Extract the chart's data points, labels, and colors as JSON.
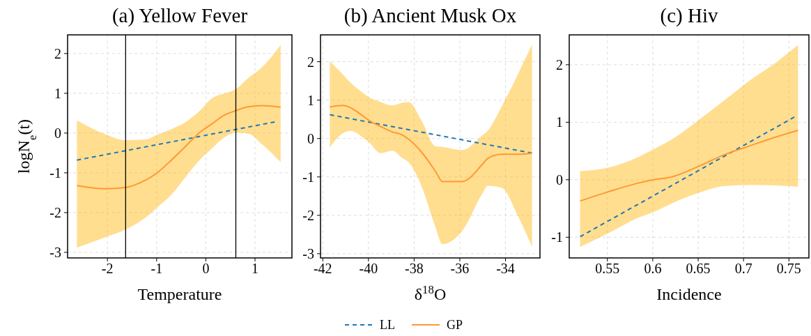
{
  "chart_data": [
    {
      "type": "line",
      "title": "(a) Yellow Fever",
      "xlabel": "Temperature",
      "ylabel": "logN$_{e}$(t)",
      "xlim": [
        -2.81,
        1.75
      ],
      "xticks": [
        -2,
        -1,
        0,
        1
      ],
      "ylim": [
        -3.14,
        2.47
      ],
      "yticks": [
        -3,
        -2,
        -1,
        0,
        1,
        2
      ],
      "grid": true,
      "legend": "bottom",
      "ref_lines": [
        {
          "axis": "x",
          "value": -1.63,
          "color": "#000000"
        },
        {
          "axis": "x",
          "value": 0.61,
          "color": "#000000"
        }
      ],
      "series": [
        {
          "name": "LL",
          "color": "#1f77b4",
          "line_style": "dashed",
          "x": [
            -2.62,
            1.4
          ],
          "values": [
            -0.68,
            0.28
          ]
        },
        {
          "name": "GP",
          "color": "#ff9933",
          "line_style": "solid",
          "x": [
            -2.62,
            -2.02,
            -1.64,
            -1.22,
            -1.0,
            -0.7,
            -0.41,
            -0.09,
            0.11,
            0.39,
            0.6,
            0.86,
            1.14,
            1.52
          ],
          "values": [
            -1.32,
            -1.4,
            -1.37,
            -1.18,
            -1.01,
            -0.68,
            -0.33,
            0.05,
            0.22,
            0.46,
            0.56,
            0.66,
            0.69,
            0.65
          ],
          "upper": [
            0.32,
            -0.04,
            -0.18,
            -0.16,
            -0.05,
            0.1,
            0.28,
            0.6,
            0.86,
            1.0,
            1.1,
            1.38,
            1.65,
            2.21
          ],
          "lower": [
            -2.88,
            -2.61,
            -2.43,
            -2.12,
            -1.88,
            -1.55,
            -1.1,
            -0.63,
            -0.4,
            -0.1,
            0.01,
            -0.01,
            -0.28,
            -0.73
          ]
        }
      ]
    },
    {
      "type": "line",
      "title": "(b) Ancient Musk Ox",
      "xlabel": "δ$^{18}$O",
      "xlim": [
        -42.1,
        -32.49
      ],
      "xticks": [
        -42,
        -40,
        -38,
        -36,
        -34
      ],
      "ylim": [
        -3.11,
        2.7
      ],
      "yticks": [
        -3,
        -2,
        -1,
        0,
        1,
        2
      ],
      "grid": true,
      "series": [
        {
          "color": "#1f77b4",
          "line_style": "dashed",
          "x": [
            -41.69,
            -32.84
          ],
          "values": [
            0.62,
            -0.38
          ]
        },
        {
          "color": "#ff9933",
          "line_style": "solid",
          "x": [
            -41.69,
            -41.14,
            -40.78,
            -40.27,
            -39.97,
            -39.46,
            -38.95,
            -38.54,
            -38.24,
            -37.68,
            -37.07,
            -36.76,
            -35.9,
            -34.98,
            -34.78,
            -34.17,
            -33.45,
            -32.84
          ],
          "values": [
            0.82,
            0.86,
            0.8,
            0.6,
            0.47,
            0.31,
            0.17,
            0.1,
            -0.02,
            -0.35,
            -0.85,
            -1.12,
            -1.12,
            -0.65,
            -0.52,
            -0.41,
            -0.41,
            -0.38
          ],
          "upper": [
            2.01,
            1.68,
            1.45,
            1.2,
            1.07,
            0.95,
            0.86,
            0.93,
            0.95,
            0.47,
            -0.2,
            -0.22,
            -0.3,
            0.1,
            0.2,
            0.83,
            1.68,
            2.44
          ],
          "lower": [
            -0.23,
            0.13,
            0.2,
            0.04,
            -0.1,
            -0.38,
            -0.32,
            -0.5,
            -0.62,
            -1.23,
            -2.3,
            -2.75,
            -2.41,
            -1.4,
            -1.23,
            -1.28,
            -2.02,
            -2.81
          ]
        }
      ]
    },
    {
      "type": "line",
      "title": "(c) Hiv",
      "xlabel": "Incidence",
      "xlim": [
        0.508,
        0.772
      ],
      "xticks": [
        0.55,
        0.6,
        0.65,
        0.7,
        0.75
      ],
      "ylim": [
        -1.36,
        2.52
      ],
      "yticks": [
        -1,
        0,
        1,
        2
      ],
      "grid": true,
      "series": [
        {
          "color": "#1f77b4",
          "line_style": "dashed",
          "x": [
            0.52,
            0.756
          ],
          "values": [
            -0.99,
            1.09
          ]
        },
        {
          "color": "#ff9933",
          "line_style": "solid",
          "x": [
            0.52,
            0.551,
            0.581,
            0.601,
            0.621,
            0.65,
            0.678,
            0.709,
            0.735,
            0.76
          ],
          "values": [
            -0.37,
            -0.21,
            -0.07,
            0,
            0.05,
            0.23,
            0.43,
            0.6,
            0.74,
            0.86
          ],
          "upper": [
            0.15,
            0.21,
            0.37,
            0.53,
            0.7,
            1.03,
            1.37,
            1.75,
            2.03,
            2.34
          ],
          "lower": [
            -1.17,
            -0.93,
            -0.68,
            -0.56,
            -0.41,
            -0.23,
            -0.11,
            -0.09,
            -0.1,
            -0.12
          ]
        }
      ]
    }
  ]
}
